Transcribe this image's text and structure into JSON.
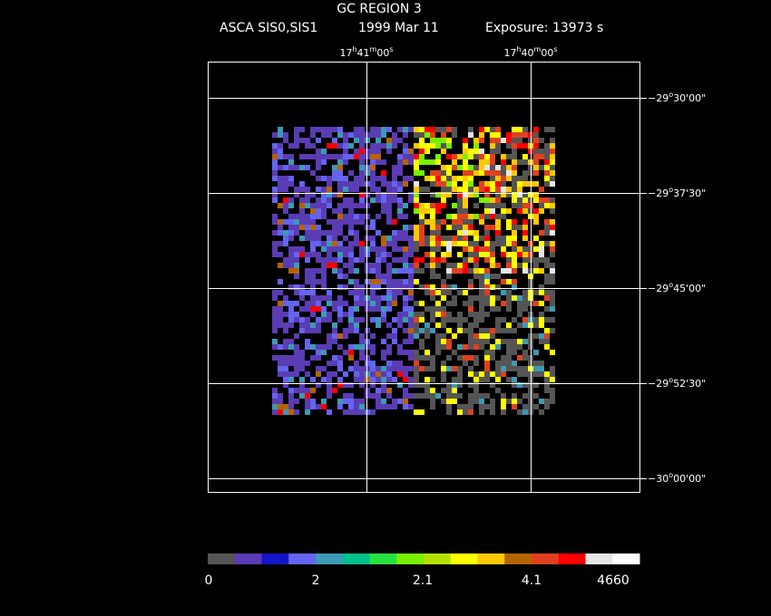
{
  "title": "GC REGION 3",
  "subtitle": [
    "ASCA SIS0,SIS1",
    "1999 Mar 11",
    "Exposure: 13973 s"
  ],
  "ra_labels": [
    [
      "17",
      "h",
      "41",
      "m",
      "00",
      "s"
    ],
    [
      "17",
      "h",
      "40",
      "m",
      "00",
      "s"
    ]
  ],
  "dec_labels": [
    [
      "−29",
      "o",
      "30'00\""
    ],
    [
      "−29",
      "o",
      "37'30\""
    ],
    [
      "−29",
      "o",
      "45'00\""
    ],
    [
      "−29",
      "o",
      "52'30\""
    ],
    [
      "−30",
      "o",
      "00'00\""
    ]
  ],
  "colorbar": {
    "colors": [
      "#555555",
      "#5a3cb4",
      "#1414c8",
      "#6464f0",
      "#3c9ab4",
      "#00c08c",
      "#28e040",
      "#78f000",
      "#b4e000",
      "#ffff00",
      "#ffc800",
      "#b46400",
      "#e04020",
      "#ff0000",
      "#e6e6e6",
      "#ffffff"
    ],
    "labels": [
      "0",
      "2",
      "2.1",
      "4.1",
      "4660"
    ]
  }
}
